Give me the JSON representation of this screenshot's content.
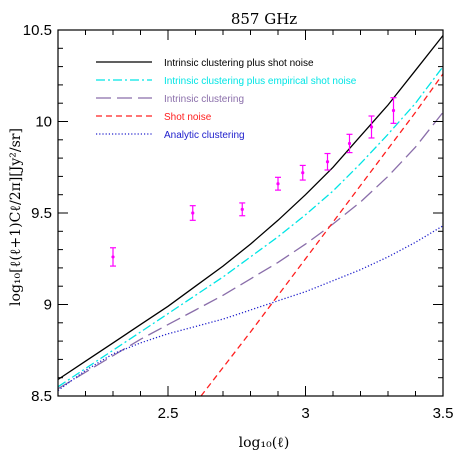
{
  "chart_data": {
    "type": "line",
    "title": "857 GHz",
    "xlabel": "log₁₀(ℓ)",
    "ylabel": "log₁₀[ℓ(ℓ+1)Cℓ/2π][Jy²/sr]",
    "xlim": [
      2.1,
      3.5
    ],
    "ylim": [
      8.5,
      10.5
    ],
    "x_ticks": [
      2.5,
      3,
      3.5
    ],
    "x_tick_labels": [
      "2.5",
      "3",
      "3.5"
    ],
    "y_ticks": [
      8.5,
      9,
      9.5,
      10,
      10.5
    ],
    "y_tick_labels": [
      "8.5",
      "9",
      "9.5",
      "10",
      "10.5"
    ],
    "legend_position": "top-left",
    "series": [
      {
        "name": "Intrinsic clustering plus shot noise",
        "color": "#000000",
        "dash": "solid",
        "x": [
          2.1,
          2.2,
          2.3,
          2.4,
          2.5,
          2.6,
          2.7,
          2.8,
          2.9,
          3.0,
          3.1,
          3.2,
          3.3,
          3.4,
          3.5
        ],
        "y": [
          8.59,
          8.69,
          8.79,
          8.89,
          8.99,
          9.1,
          9.21,
          9.33,
          9.46,
          9.6,
          9.75,
          9.92,
          10.09,
          10.28,
          10.47
        ]
      },
      {
        "name": "Intrinsic clustering plus empirical shot noise",
        "color": "#00e5e5",
        "dash": "dash-dot",
        "x": [
          2.1,
          2.2,
          2.3,
          2.4,
          2.5,
          2.6,
          2.7,
          2.8,
          2.9,
          3.0,
          3.1,
          3.2,
          3.3,
          3.4,
          3.5
        ],
        "y": [
          8.55,
          8.65,
          8.75,
          8.85,
          8.95,
          9.05,
          9.15,
          9.26,
          9.37,
          9.49,
          9.62,
          9.77,
          9.93,
          10.1,
          10.3
        ]
      },
      {
        "name": "Intrinsic clustering",
        "color": "#8a6eaa",
        "dash": "long-dash",
        "x": [
          2.1,
          2.2,
          2.3,
          2.4,
          2.5,
          2.6,
          2.7,
          2.8,
          2.9,
          3.0,
          3.1,
          3.2,
          3.3,
          3.4,
          3.5
        ],
        "y": [
          8.54,
          8.63,
          8.72,
          8.81,
          8.89,
          8.97,
          9.05,
          9.14,
          9.23,
          9.33,
          9.44,
          9.56,
          9.7,
          9.86,
          10.05
        ]
      },
      {
        "name": "Shot noise",
        "color": "#ff2020",
        "dash": "dash",
        "x": [
          2.62,
          2.8,
          3.0,
          3.2,
          3.4,
          3.5
        ],
        "y": [
          8.5,
          8.85,
          9.25,
          9.65,
          10.05,
          10.26
        ]
      },
      {
        "name": "Analytic clustering",
        "color": "#2020cc",
        "dash": "dot",
        "x": [
          2.1,
          2.2,
          2.3,
          2.4,
          2.5,
          2.6,
          2.7,
          2.8,
          2.9,
          3.0,
          3.1,
          3.2,
          3.3,
          3.4,
          3.5
        ],
        "y": [
          8.53,
          8.64,
          8.73,
          8.79,
          8.84,
          8.88,
          8.92,
          8.97,
          9.02,
          9.07,
          9.13,
          9.19,
          9.26,
          9.34,
          9.43
        ]
      }
    ],
    "data_points": {
      "color": "#ff00ff",
      "x": [
        2.3,
        2.59,
        2.77,
        2.9,
        2.99,
        3.08,
        3.16,
        3.24,
        3.32
      ],
      "y": [
        9.26,
        9.5,
        9.52,
        9.66,
        9.72,
        9.78,
        9.88,
        9.97,
        10.06
      ],
      "err": [
        0.05,
        0.04,
        0.035,
        0.035,
        0.04,
        0.045,
        0.05,
        0.06,
        0.07
      ]
    }
  }
}
